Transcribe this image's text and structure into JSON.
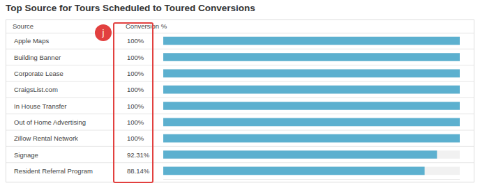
{
  "chart_data": {
    "type": "bar",
    "orientation": "horizontal",
    "title": "Top Source for Tours Scheduled to Toured Conversions",
    "ylabel": "Source",
    "xlabel": "Conversion %",
    "categories": [
      "Apple Maps",
      "Building Banner",
      "Corporate Lease",
      "CraigsList.com",
      "In House Transfer",
      "Out of Home Advertising",
      "Zillow Rental Network",
      "Signage",
      "Resident Referral Program"
    ],
    "values": [
      100,
      100,
      100,
      100,
      100,
      100,
      100,
      92.31,
      88.14
    ],
    "value_labels": [
      "100%",
      "100%",
      "100%",
      "100%",
      "100%",
      "100%",
      "100%",
      "92.31%",
      "88.14%"
    ],
    "data_labels": true,
    "color": "#5cb0cf",
    "xlim": [
      0,
      100
    ],
    "tick_labels": false,
    "grid": false,
    "annotations": [
      {
        "text": "j"
      }
    ]
  }
}
